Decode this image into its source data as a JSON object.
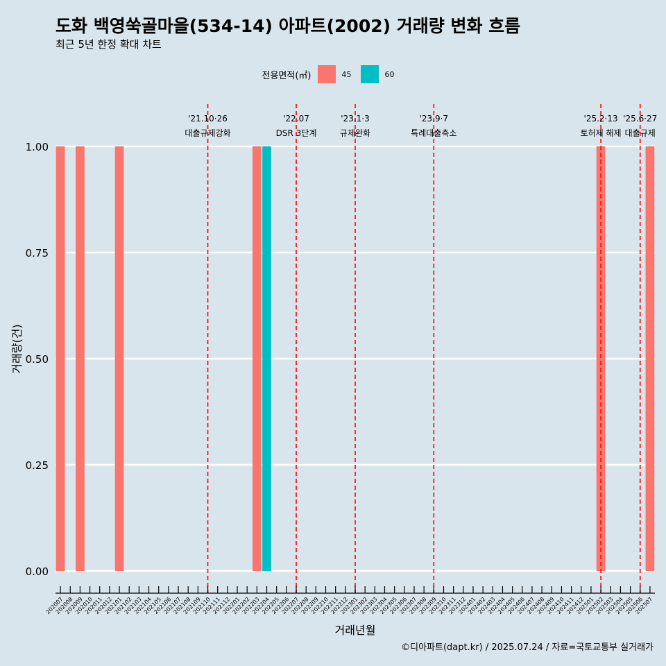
{
  "title": "도화 백영쑥골마을(534-14) 아파트(2002) 거래량 변화 흐름",
  "subtitle": "최근 5년 한정 확대 차트",
  "caption": "©디아파트(dapt.kr) / 2025.07.24 / 자료=국토교통부 실거래가",
  "legend": {
    "title": "전용면적(㎡)",
    "items": [
      {
        "label": "45",
        "color": "#f8766d"
      },
      {
        "label": "60",
        "color": "#00bfc4"
      }
    ]
  },
  "chart_data": {
    "type": "bar",
    "xlabel": "거래년월",
    "ylabel": "거래량(건)",
    "ylim": [
      0,
      1
    ],
    "yticks": [
      "0.00",
      "0.25",
      "0.50",
      "0.75",
      "1.00"
    ],
    "grid": true,
    "legend_position": "top",
    "categories": [
      "202007",
      "202008",
      "202009",
      "202010",
      "202011",
      "202012",
      "202101",
      "202102",
      "202103",
      "202104",
      "202105",
      "202106",
      "202107",
      "202108",
      "202109",
      "202110",
      "202111",
      "202112",
      "202201",
      "202202",
      "202203",
      "202204",
      "202205",
      "202206",
      "202207",
      "202208",
      "202209",
      "202210",
      "202211",
      "202212",
      "202301",
      "202302",
      "202303",
      "202304",
      "202305",
      "202306",
      "202307",
      "202308",
      "202309",
      "202310",
      "202311",
      "202312",
      "202401",
      "202402",
      "202403",
      "202404",
      "202405",
      "202406",
      "202407",
      "202408",
      "202409",
      "202410",
      "202411",
      "202412",
      "202501",
      "202502",
      "202503",
      "202504",
      "202505",
      "202506",
      "202507"
    ],
    "series": [
      {
        "name": "45",
        "color": "#f8766d",
        "points": [
          {
            "x": "202007",
            "y": 1
          },
          {
            "x": "202009",
            "y": 1
          },
          {
            "x": "202101",
            "y": 1
          },
          {
            "x": "202203",
            "y": 1
          },
          {
            "x": "202502",
            "y": 1
          },
          {
            "x": "202507",
            "y": 1
          }
        ]
      },
      {
        "name": "60",
        "color": "#00bfc4",
        "points": [
          {
            "x": "202204",
            "y": 1
          }
        ]
      }
    ],
    "annotations": [
      {
        "x": "202110",
        "date": "'21.10·26",
        "label": "대출규제강화"
      },
      {
        "x": "202207",
        "date": "'22.07",
        "label": "DSR 3단계"
      },
      {
        "x": "202301",
        "date": "'23.1·3",
        "label": "규제완화"
      },
      {
        "x": "202309",
        "date": "'23.9·7",
        "label": "특례대출축소"
      },
      {
        "x": "202502",
        "date": "'25.2·13",
        "label": "토허제 해제"
      },
      {
        "x": "202506",
        "date": "'25.6·27",
        "label": "대출규제"
      }
    ]
  }
}
